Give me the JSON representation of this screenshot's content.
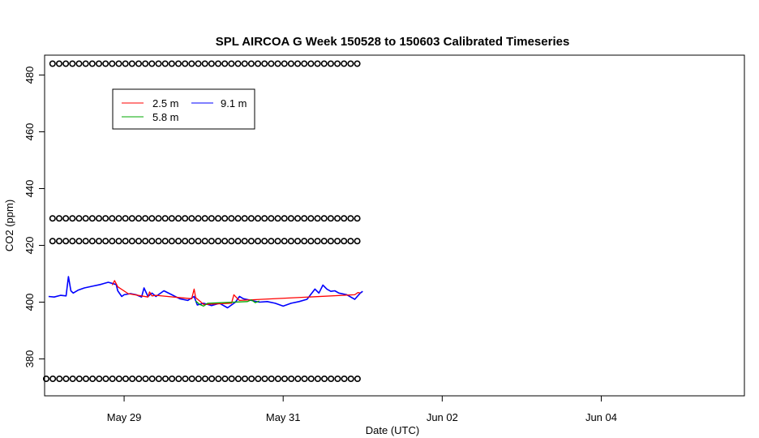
{
  "chart_data": {
    "type": "line",
    "title": "SPL AIRCOA G  Week 150528 to 150603  Calibrated Timeseries",
    "xlabel": "Date (UTC)",
    "ylabel": "CO2 (ppm)",
    "xlim": [
      0,
      8.8
    ],
    "ylim": [
      367,
      487
    ],
    "x_ticks": [
      {
        "value": 1.0,
        "label": "May 29"
      },
      {
        "value": 3.0,
        "label": "May 31"
      },
      {
        "value": 5.0,
        "label": "Jun 02"
      },
      {
        "value": 7.0,
        "label": "Jun 04"
      }
    ],
    "y_ticks": [
      380,
      400,
      420,
      440,
      460,
      480
    ],
    "grid": false,
    "legend": {
      "placement": "top-left",
      "entries": [
        {
          "label": "2.5 m",
          "color": "#ff0000"
        },
        {
          "label": "9.1 m",
          "color": "#0000ff"
        },
        {
          "label": "5.8 m",
          "color": "#00aa00"
        }
      ]
    },
    "marker_rows": [
      {
        "y": 484,
        "x_start": 0.1,
        "x_end": 4.0
      },
      {
        "y": 429.5,
        "x_start": 0.1,
        "x_end": 4.0
      },
      {
        "y": 421.5,
        "x_start": 0.1,
        "x_end": 4.0
      },
      {
        "y": 373,
        "x_start": 0.02,
        "x_end": 4.0
      }
    ],
    "series": [
      {
        "name": "9.1 m",
        "color": "#0000ff",
        "x": [
          0.05,
          0.12,
          0.2,
          0.27,
          0.3,
          0.33,
          0.36,
          0.42,
          0.5,
          0.6,
          0.7,
          0.8,
          0.9,
          0.92,
          0.97,
          1.0,
          1.08,
          1.15,
          1.22,
          1.25,
          1.3,
          1.35,
          1.4,
          1.5,
          1.6,
          1.7,
          1.8,
          1.88,
          1.92,
          2.0,
          2.1,
          2.2,
          2.3,
          2.4,
          2.45,
          2.5,
          2.6,
          2.7,
          2.8,
          2.9,
          3.0,
          3.1,
          3.2,
          3.3,
          3.4,
          3.45,
          3.5,
          3.55,
          3.6,
          3.65,
          3.7,
          3.8,
          3.9,
          3.97,
          4.0
        ],
        "y": [
          402,
          401.8,
          402.4,
          402.2,
          409,
          404,
          403.2,
          404.2,
          405,
          405.6,
          406.2,
          407,
          406.2,
          404,
          402,
          402.6,
          403,
          402.6,
          401.8,
          405,
          402,
          403.2,
          402,
          404,
          402.6,
          401.2,
          400.6,
          402,
          399,
          399.6,
          398.8,
          399.6,
          398,
          400,
          402,
          401.2,
          400.6,
          400,
          400.2,
          399.6,
          398.6,
          399.6,
          400.2,
          401,
          404.6,
          403.2,
          406,
          404.6,
          403.8,
          404,
          403.2,
          402.6,
          401,
          403.2,
          403.8
        ]
      },
      {
        "name": "2.5 m",
        "color": "#ff0000",
        "x": [
          0.85,
          0.88,
          0.92,
          1.05,
          1.3,
          1.32,
          1.35,
          1.4,
          1.85,
          1.88,
          1.9,
          2.0,
          2.35,
          2.38,
          2.42,
          2.45,
          3.9,
          3.94,
          3.97
        ],
        "y": [
          406,
          407.6,
          405.4,
          403,
          401.8,
          403.6,
          402.2,
          402.4,
          401.2,
          404.6,
          401.6,
          399.2,
          399.6,
          402.6,
          401.4,
          400.6,
          402.6,
          403.4,
          403.2
        ]
      },
      {
        "name": "5.8 m",
        "color": "#00aa00",
        "x": [
          1.9,
          1.95,
          2.0,
          2.05,
          2.55,
          2.6,
          2.65,
          2.7
        ],
        "y": [
          400.4,
          399.2,
          398.6,
          399.6,
          400.2,
          400.8,
          399.8,
          400.4
        ]
      }
    ]
  }
}
